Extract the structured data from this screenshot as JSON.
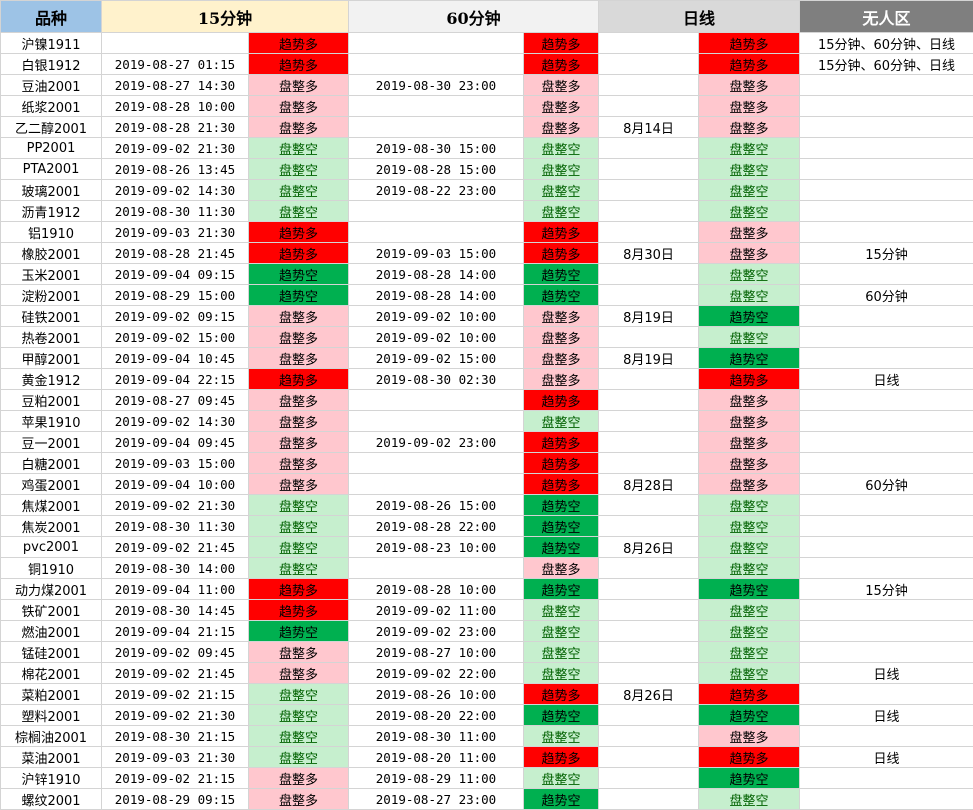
{
  "header": {
    "name": "品种",
    "m15": "15分钟",
    "m60": "60分钟",
    "day": "日线",
    "none": "无人区"
  },
  "colors": {
    "trend_up": "#ff0000",
    "trend_down": "#00b050",
    "range_up": "#ffc7ce",
    "range_down": "#c6efce"
  },
  "rows": [
    {
      "name": "沪镍1911",
      "t15": "",
      "s15": "趋势多",
      "t60": "",
      "s60": "趋势多",
      "tday": "",
      "sday": "趋势多",
      "none": "15分钟、60分钟、日线"
    },
    {
      "name": "白银1912",
      "t15": "2019-08-27 01:15",
      "s15": "趋势多",
      "t60": "",
      "s60": "趋势多",
      "tday": "",
      "sday": "趋势多",
      "none": "15分钟、60分钟、日线"
    },
    {
      "name": "豆油2001",
      "t15": "2019-08-27 14:30",
      "s15": "盘整多",
      "t60": "2019-08-30 23:00",
      "s60": "盘整多",
      "tday": "",
      "sday": "盘整多",
      "none": ""
    },
    {
      "name": "纸浆2001",
      "t15": "2019-08-28 10:00",
      "s15": "盘整多",
      "t60": "",
      "s60": "盘整多",
      "tday": "",
      "sday": "盘整多",
      "none": ""
    },
    {
      "name": "乙二醇2001",
      "t15": "2019-08-28 21:30",
      "s15": "盘整多",
      "t60": "",
      "s60": "盘整多",
      "tday": "8月14日",
      "sday": "盘整多",
      "none": ""
    },
    {
      "name": "PP2001",
      "t15": "2019-09-02 21:30",
      "s15": "盘整空",
      "t60": "2019-08-30 15:00",
      "s60": "盘整空",
      "tday": "",
      "sday": "盘整空",
      "none": ""
    },
    {
      "name": "PTA2001",
      "t15": "2019-08-26 13:45",
      "s15": "盘整空",
      "t60": "2019-08-28 15:00",
      "s60": "盘整空",
      "tday": "",
      "sday": "盘整空",
      "none": ""
    },
    {
      "name": "玻璃2001",
      "t15": "2019-09-02 14:30",
      "s15": "盘整空",
      "t60": "2019-08-22 23:00",
      "s60": "盘整空",
      "tday": "",
      "sday": "盘整空",
      "none": ""
    },
    {
      "name": "沥青1912",
      "t15": "2019-08-30 11:30",
      "s15": "盘整空",
      "t60": "",
      "s60": "盘整空",
      "tday": "",
      "sday": "盘整空",
      "none": ""
    },
    {
      "name": "铝1910",
      "t15": "2019-09-03 21:30",
      "s15": "趋势多",
      "t60": "",
      "s60": "趋势多",
      "tday": "",
      "sday": "盘整多",
      "none": ""
    },
    {
      "name": "橡胶2001",
      "t15": "2019-08-28 21:45",
      "s15": "趋势多",
      "t60": "2019-09-03 15:00",
      "s60": "趋势多",
      "tday": "8月30日",
      "sday": "盘整多",
      "none": "15分钟"
    },
    {
      "name": "玉米2001",
      "t15": "2019-09-04 09:15",
      "s15": "趋势空",
      "t60": "2019-08-28 14:00",
      "s60": "趋势空",
      "tday": "",
      "sday": "盘整空",
      "none": ""
    },
    {
      "name": "淀粉2001",
      "t15": "2019-08-29 15:00",
      "s15": "趋势空",
      "t60": "2019-08-28 14:00",
      "s60": "趋势空",
      "tday": "",
      "sday": "盘整空",
      "none": "60分钟"
    },
    {
      "name": "硅铁2001",
      "t15": "2019-09-02 09:15",
      "s15": "盘整多",
      "t60": "2019-09-02 10:00",
      "s60": "盘整多",
      "tday": "8月19日",
      "sday": "趋势空",
      "none": ""
    },
    {
      "name": "热卷2001",
      "t15": "2019-09-02 15:00",
      "s15": "盘整多",
      "t60": "2019-09-02 10:00",
      "s60": "盘整多",
      "tday": "",
      "sday": "盘整空",
      "none": ""
    },
    {
      "name": "甲醇2001",
      "t15": "2019-09-04 10:45",
      "s15": "盘整多",
      "t60": "2019-09-02 15:00",
      "s60": "盘整多",
      "tday": "8月19日",
      "sday": "趋势空",
      "none": ""
    },
    {
      "name": "黄金1912",
      "t15": "2019-09-04 22:15",
      "s15": "趋势多",
      "t60": "2019-08-30 02:30",
      "s60": "盘整多",
      "tday": "",
      "sday": "趋势多",
      "none": "日线"
    },
    {
      "name": "豆粕2001",
      "t15": "2019-08-27 09:45",
      "s15": "盘整多",
      "t60": "",
      "s60": "趋势多",
      "tday": "",
      "sday": "盘整多",
      "none": ""
    },
    {
      "name": "苹果1910",
      "t15": "2019-09-02 14:30",
      "s15": "盘整多",
      "t60": "",
      "s60": "盘整空",
      "tday": "",
      "sday": "盘整多",
      "none": ""
    },
    {
      "name": "豆一2001",
      "t15": "2019-09-04 09:45",
      "s15": "盘整多",
      "t60": "2019-09-02 23:00",
      "s60": "趋势多",
      "tday": "",
      "sday": "盘整多",
      "none": ""
    },
    {
      "name": "白糖2001",
      "t15": "2019-09-03 15:00",
      "s15": "盘整多",
      "t60": "",
      "s60": "趋势多",
      "tday": "",
      "sday": "盘整多",
      "none": ""
    },
    {
      "name": "鸡蛋2001",
      "t15": "2019-09-04 10:00",
      "s15": "盘整多",
      "t60": "",
      "s60": "趋势多",
      "tday": "8月28日",
      "sday": "盘整多",
      "none": "60分钟"
    },
    {
      "name": "焦煤2001",
      "t15": "2019-09-02 21:30",
      "s15": "盘整空",
      "t60": "2019-08-26 15:00",
      "s60": "趋势空",
      "tday": "",
      "sday": "盘整空",
      "none": ""
    },
    {
      "name": "焦炭2001",
      "t15": "2019-08-30 11:30",
      "s15": "盘整空",
      "t60": "2019-08-28 22:00",
      "s60": "趋势空",
      "tday": "",
      "sday": "盘整空",
      "none": ""
    },
    {
      "name": "pvc2001",
      "t15": "2019-09-02 21:45",
      "s15": "盘整空",
      "t60": "2019-08-23 10:00",
      "s60": "趋势空",
      "tday": "8月26日",
      "sday": "盘整空",
      "none": ""
    },
    {
      "name": "铜1910",
      "t15": "2019-08-30 14:00",
      "s15": "盘整空",
      "t60": "",
      "s60": "盘整多",
      "tday": "",
      "sday": "盘整空",
      "none": ""
    },
    {
      "name": "动力煤2001",
      "t15": "2019-09-04 11:00",
      "s15": "趋势多",
      "t60": "2019-08-28 10:00",
      "s60": "趋势空",
      "tday": "",
      "sday": "趋势空",
      "none": "15分钟"
    },
    {
      "name": "铁矿2001",
      "t15": "2019-08-30 14:45",
      "s15": "趋势多",
      "t60": "2019-09-02 11:00",
      "s60": "盘整空",
      "tday": "",
      "sday": "盘整空",
      "none": ""
    },
    {
      "name": "燃油2001",
      "t15": "2019-09-04 21:15",
      "s15": "趋势空",
      "t60": "2019-09-02 23:00",
      "s60": "盘整空",
      "tday": "",
      "sday": "盘整空",
      "none": ""
    },
    {
      "name": "锰硅2001",
      "t15": "2019-09-02 09:45",
      "s15": "盘整多",
      "t60": "2019-08-27 10:00",
      "s60": "盘整空",
      "tday": "",
      "sday": "盘整空",
      "none": ""
    },
    {
      "name": "棉花2001",
      "t15": "2019-09-02 21:45",
      "s15": "盘整多",
      "t60": "2019-09-02 22:00",
      "s60": "盘整空",
      "tday": "",
      "sday": "盘整空",
      "none": "日线"
    },
    {
      "name": "菜粕2001",
      "t15": "2019-09-02 21:15",
      "s15": "盘整空",
      "t60": "2019-08-26 10:00",
      "s60": "趋势多",
      "tday": "8月26日",
      "sday": "趋势多",
      "none": ""
    },
    {
      "name": "塑料2001",
      "t15": "2019-09-02 21:30",
      "s15": "盘整空",
      "t60": "2019-08-20 22:00",
      "s60": "趋势空",
      "tday": "",
      "sday": "趋势空",
      "none": "日线"
    },
    {
      "name": "棕榈油2001",
      "t15": "2019-08-30 21:15",
      "s15": "盘整空",
      "t60": "2019-08-30 11:00",
      "s60": "盘整空",
      "tday": "",
      "sday": "盘整多",
      "none": ""
    },
    {
      "name": "菜油2001",
      "t15": "2019-09-03 21:30",
      "s15": "盘整空",
      "t60": "2019-08-20 11:00",
      "s60": "趋势多",
      "tday": "",
      "sday": "趋势多",
      "none": "日线"
    },
    {
      "name": "沪锌1910",
      "t15": "2019-09-02 21:15",
      "s15": "盘整多",
      "t60": "2019-08-29 11:00",
      "s60": "盘整空",
      "tday": "",
      "sday": "趋势空",
      "none": ""
    },
    {
      "name": "螺纹2001",
      "t15": "2019-08-29 09:15",
      "s15": "盘整多",
      "t60": "2019-08-27 23:00",
      "s60": "趋势空",
      "tday": "",
      "sday": "盘整空",
      "none": ""
    }
  ]
}
